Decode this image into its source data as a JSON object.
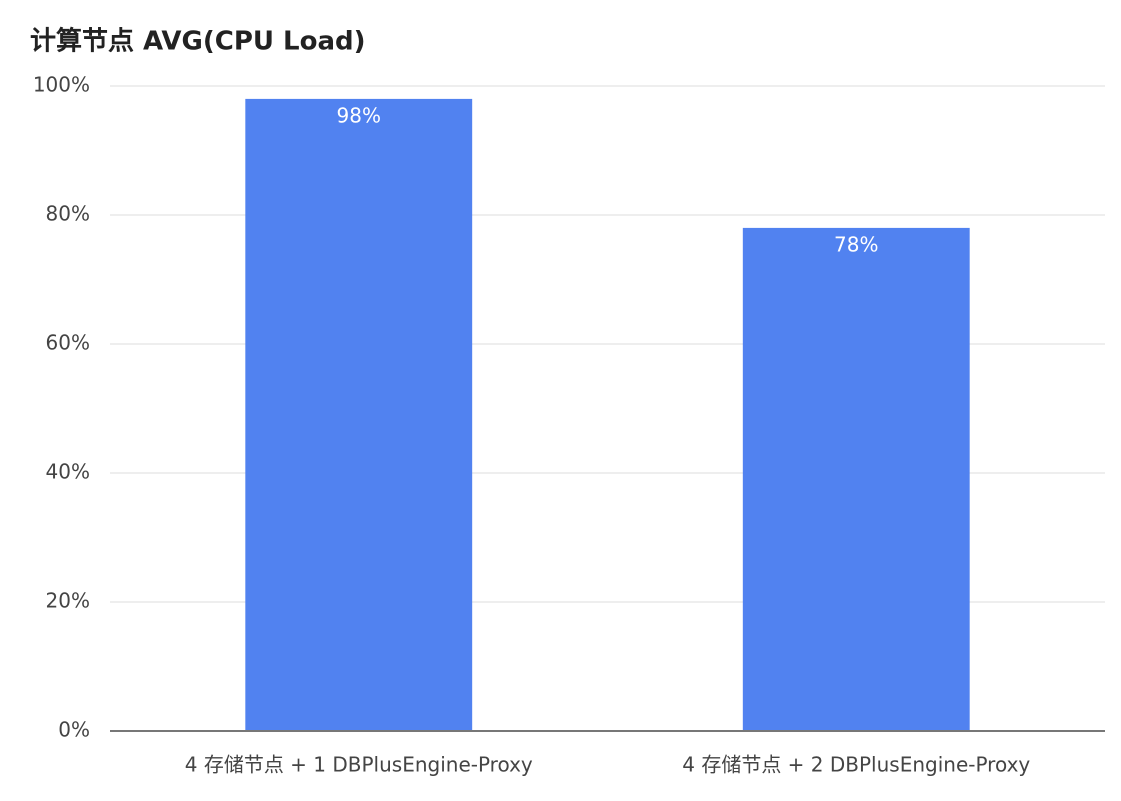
{
  "chart_data": {
    "type": "bar",
    "title": "计算节点 AVG(CPU Load)",
    "categories": [
      "4 存储节点 + 1 DBPlusEngine-Proxy",
      "4 存储节点 + 2 DBPlusEngine-Proxy"
    ],
    "values": [
      98,
      78
    ],
    "value_labels": [
      "98%",
      "78%"
    ],
    "color": "#5182f0",
    "ylim": [
      0,
      100
    ],
    "yticks": [
      {
        "value": 0,
        "label": "0%"
      },
      {
        "value": 20,
        "label": "20%"
      },
      {
        "value": 40,
        "label": "40%"
      },
      {
        "value": 60,
        "label": "60%"
      },
      {
        "value": 80,
        "label": "80%"
      },
      {
        "value": 100,
        "label": "100%"
      }
    ],
    "grid": true
  }
}
